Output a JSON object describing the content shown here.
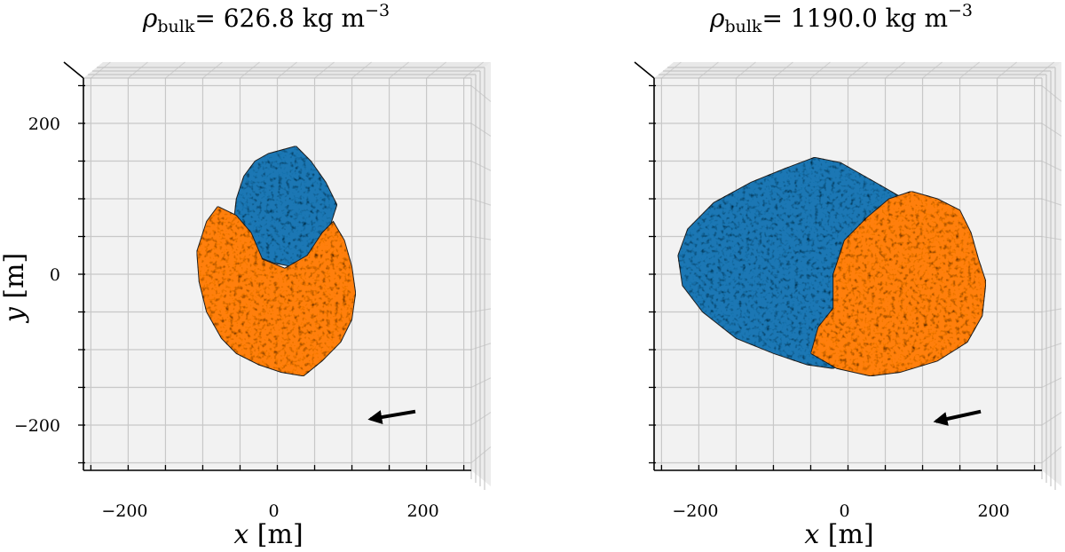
{
  "chart_data": [
    {
      "type": "scatter",
      "panel": "left",
      "title": {
        "symbol": "ρ",
        "subscript": "bulk",
        "text": "= 626.8 kg m",
        "exponent": "−3"
      },
      "xlabel": {
        "var": "x",
        "unit": " [m]"
      },
      "ylabel": {
        "var": "y",
        "unit": " [m]"
      },
      "xlim": [
        -260,
        260
      ],
      "ylim": [
        -260,
        260
      ],
      "xticks": [
        -200,
        0,
        200
      ],
      "xtick_labels": [
        "−200",
        "0",
        "200"
      ],
      "yticks": [
        -200,
        0,
        200
      ],
      "ytick_labels": [
        "−200",
        "0",
        "200"
      ],
      "grid": true,
      "series": [
        {
          "name": "blue component",
          "color": "#1f77b4",
          "outline": [
            [
              -12,
              160
            ],
            [
              25,
              170
            ],
            [
              45,
              150
            ],
            [
              65,
              122
            ],
            [
              80,
              92
            ],
            [
              68,
              55
            ],
            [
              50,
              30
            ],
            [
              20,
              10
            ],
            [
              -5,
              15
            ],
            [
              -30,
              25
            ],
            [
              -45,
              55
            ],
            [
              -58,
              75
            ],
            [
              -55,
              100
            ],
            [
              -45,
              130
            ],
            [
              -30,
              150
            ]
          ]
        },
        {
          "name": "orange component",
          "color": "#ff7f0e",
          "outline": [
            [
              -80,
              90
            ],
            [
              -55,
              78
            ],
            [
              -35,
              55
            ],
            [
              -20,
              20
            ],
            [
              10,
              8
            ],
            [
              40,
              25
            ],
            [
              60,
              55
            ],
            [
              75,
              70
            ],
            [
              90,
              45
            ],
            [
              100,
              10
            ],
            [
              105,
              -25
            ],
            [
              100,
              -60
            ],
            [
              85,
              -90
            ],
            [
              60,
              -115
            ],
            [
              35,
              -135
            ],
            [
              5,
              -130
            ],
            [
              -25,
              -120
            ],
            [
              -55,
              -105
            ],
            [
              -75,
              -85
            ],
            [
              -95,
              -50
            ],
            [
              -105,
              -10
            ],
            [
              -108,
              30
            ],
            [
              -95,
              70
            ]
          ]
        }
      ],
      "arrow": {
        "from": [
          185,
          -182
        ],
        "to": [
          125,
          -192
        ]
      }
    },
    {
      "type": "scatter",
      "panel": "right",
      "title": {
        "symbol": "ρ",
        "subscript": "bulk",
        "text": "= 1190.0 kg m",
        "exponent": "−3"
      },
      "xlabel": {
        "var": "x",
        "unit": " [m]"
      },
      "ylabel": {
        "var": "",
        "unit": ""
      },
      "xlim": [
        -260,
        260
      ],
      "ylim": [
        -260,
        260
      ],
      "xticks": [
        -200,
        0,
        200
      ],
      "xtick_labels": [
        "−200",
        "0",
        "200"
      ],
      "yticks": [
        -200,
        0,
        200
      ],
      "ytick_labels": [],
      "grid": true,
      "series": [
        {
          "name": "blue component",
          "color": "#1f77b4",
          "outline": [
            [
              -45,
              155
            ],
            [
              -10,
              148
            ],
            [
              40,
              120
            ],
            [
              75,
              100
            ],
            [
              55,
              70
            ],
            [
              25,
              0
            ],
            [
              -10,
              -60
            ],
            [
              -25,
              -90
            ],
            [
              -10,
              -120
            ],
            [
              -20,
              -125
            ],
            [
              -55,
              -120
            ],
            [
              -100,
              -105
            ],
            [
              -150,
              -85
            ],
            [
              -195,
              -50
            ],
            [
              -222,
              -15
            ],
            [
              -228,
              25
            ],
            [
              -215,
              60
            ],
            [
              -180,
              95
            ],
            [
              -130,
              122
            ],
            [
              -85,
              140
            ]
          ]
        },
        {
          "name": "orange component",
          "color": "#ff7f0e",
          "outline": [
            [
              85,
              110
            ],
            [
              120,
              100
            ],
            [
              150,
              85
            ],
            [
              165,
              55
            ],
            [
              175,
              20
            ],
            [
              185,
              -10
            ],
            [
              180,
              -55
            ],
            [
              160,
              -90
            ],
            [
              120,
              -115
            ],
            [
              70,
              -130
            ],
            [
              30,
              -135
            ],
            [
              -15,
              -125
            ],
            [
              -50,
              -105
            ],
            [
              -40,
              -70
            ],
            [
              -20,
              -45
            ],
            [
              -20,
              0
            ],
            [
              -5,
              45
            ],
            [
              25,
              75
            ],
            [
              55,
              100
            ]
          ]
        }
      ],
      "arrow": {
        "from": [
          178,
          -182
        ],
        "to": [
          118,
          -195
        ]
      }
    }
  ]
}
